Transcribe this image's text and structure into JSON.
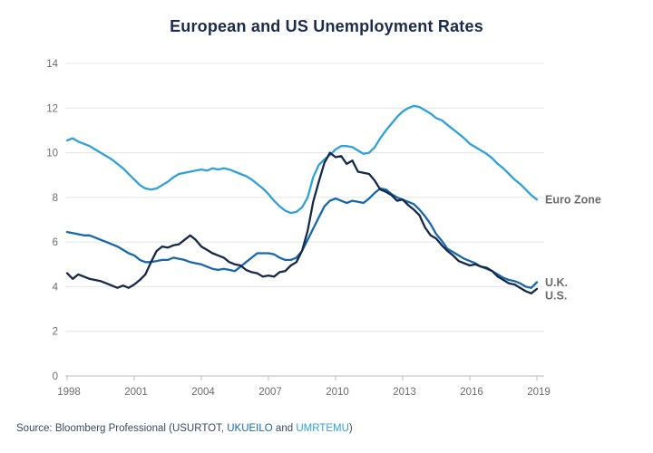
{
  "title": "European and US Unemployment Rates",
  "source": {
    "prefix": "Source: Bloomberg Professional (USURTOT, ",
    "ticker_uk": "UKUEILO",
    "connector": " and ",
    "ticker_euro": "UMRTEMU",
    "suffix": ")"
  },
  "colors": {
    "title": "#1b2b4c",
    "euro_zone": "#2fa0d8",
    "uk": "#1667ac",
    "us": "#16294a",
    "axis_label": "#6b6b6b",
    "gridline": "#e3e4e5",
    "axis_line": "#b9bbbd",
    "source_text": "#3a4a5e"
  },
  "chart_data": {
    "type": "line",
    "title": "European and US Unemployment Rates",
    "xlabel": "",
    "ylabel": "",
    "xlim": [
      1998,
      2019
    ],
    "ylim": [
      0,
      14
    ],
    "x_ticks": [
      1998,
      2001,
      2004,
      2007,
      2010,
      2013,
      2016,
      2019
    ],
    "y_ticks": [
      0,
      2,
      4,
      6,
      8,
      10,
      12,
      14
    ],
    "grid": "horizontal",
    "legend": "line-end-labels",
    "x_start": 1998,
    "x_step_years": 0.25,
    "series": [
      {
        "name": "Euro Zone",
        "color": "#2fa0d8",
        "values": [
          10.55,
          10.65,
          10.5,
          10.4,
          10.3,
          10.15,
          10.0,
          9.85,
          9.7,
          9.5,
          9.3,
          9.05,
          8.8,
          8.55,
          8.4,
          8.35,
          8.4,
          8.55,
          8.7,
          8.9,
          9.05,
          9.1,
          9.15,
          9.2,
          9.25,
          9.2,
          9.3,
          9.25,
          9.3,
          9.25,
          9.15,
          9.05,
          8.95,
          8.8,
          8.6,
          8.4,
          8.15,
          7.85,
          7.6,
          7.4,
          7.3,
          7.35,
          7.55,
          8.0,
          8.9,
          9.45,
          9.7,
          9.9,
          10.15,
          10.3,
          10.3,
          10.25,
          10.1,
          9.95,
          10.0,
          10.25,
          10.65,
          11.0,
          11.3,
          11.6,
          11.85,
          12.0,
          12.1,
          12.05,
          11.9,
          11.75,
          11.55,
          11.45,
          11.25,
          11.05,
          10.85,
          10.65,
          10.4,
          10.25,
          10.1,
          9.95,
          9.75,
          9.5,
          9.3,
          9.05,
          8.8,
          8.6,
          8.35,
          8.1,
          7.9
        ]
      },
      {
        "name": "U.K.",
        "color": "#1667ac",
        "values": [
          6.45,
          6.4,
          6.35,
          6.3,
          6.3,
          6.2,
          6.1,
          6.0,
          5.9,
          5.8,
          5.65,
          5.5,
          5.4,
          5.2,
          5.1,
          5.1,
          5.15,
          5.2,
          5.2,
          5.3,
          5.25,
          5.2,
          5.1,
          5.05,
          5.0,
          4.9,
          4.8,
          4.75,
          4.8,
          4.75,
          4.7,
          4.9,
          5.1,
          5.3,
          5.5,
          5.5,
          5.5,
          5.45,
          5.3,
          5.2,
          5.2,
          5.3,
          5.6,
          6.1,
          6.6,
          7.1,
          7.6,
          7.85,
          7.95,
          7.85,
          7.75,
          7.85,
          7.8,
          7.75,
          7.95,
          8.2,
          8.4,
          8.35,
          8.15,
          8.0,
          7.9,
          7.8,
          7.7,
          7.45,
          7.15,
          6.8,
          6.35,
          6.05,
          5.7,
          5.55,
          5.4,
          5.25,
          5.15,
          5.05,
          4.9,
          4.8,
          4.7,
          4.55,
          4.4,
          4.3,
          4.25,
          4.15,
          4.0,
          3.95,
          4.2
        ]
      },
      {
        "name": "U.S.",
        "color": "#16294a",
        "values": [
          4.6,
          4.35,
          4.55,
          4.45,
          4.35,
          4.3,
          4.25,
          4.15,
          4.05,
          3.95,
          4.05,
          3.95,
          4.1,
          4.3,
          4.55,
          5.1,
          5.6,
          5.8,
          5.75,
          5.85,
          5.9,
          6.1,
          6.3,
          6.1,
          5.8,
          5.65,
          5.5,
          5.4,
          5.3,
          5.1,
          5.0,
          4.95,
          4.75,
          4.65,
          4.6,
          4.45,
          4.5,
          4.45,
          4.65,
          4.7,
          4.95,
          5.1,
          5.6,
          6.5,
          7.8,
          8.7,
          9.55,
          10.0,
          9.8,
          9.85,
          9.5,
          9.65,
          9.15,
          9.1,
          9.05,
          8.75,
          8.35,
          8.25,
          8.1,
          7.85,
          7.9,
          7.65,
          7.45,
          7.2,
          6.65,
          6.3,
          6.15,
          5.85,
          5.6,
          5.4,
          5.15,
          5.05,
          4.95,
          5.0,
          4.9,
          4.85,
          4.7,
          4.45,
          4.3,
          4.15,
          4.1,
          3.95,
          3.8,
          3.7,
          3.9
        ]
      }
    ]
  }
}
